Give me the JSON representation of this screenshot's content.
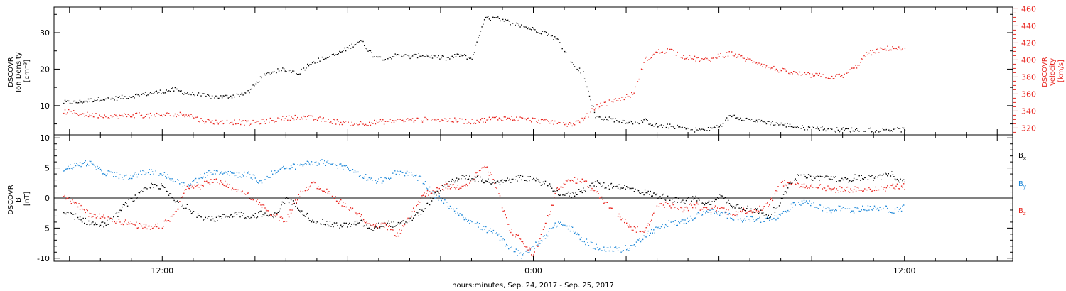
{
  "chart_data": [
    {
      "type": "scatter",
      "panel": "top",
      "ylabel": "DSCOVR Ion Density [cm⁻³]",
      "ylabel_lines": [
        "DSCOVR",
        "Ion Density",
        "[cm⁻³]"
      ],
      "ylim": [
        2,
        37
      ],
      "yticks": [
        10,
        20,
        30
      ],
      "y2label": "DSCOVR Velocity [km/s]",
      "y2label_lines": [
        "DSCOVR",
        "Velocity",
        "[km/s]"
      ],
      "y2lim": [
        312,
        462
      ],
      "y2ticks": [
        320,
        340,
        360,
        380,
        400,
        420,
        440,
        460
      ],
      "series": [
        {
          "name": "Ion Density",
          "color": "#000000",
          "axis": "left",
          "x": [
            8.8,
            9.2,
            9.6,
            10.0,
            10.4,
            10.8,
            11.2,
            11.6,
            12.0,
            12.4,
            12.8,
            13.2,
            13.6,
            14.0,
            14.4,
            14.8,
            15.2,
            15.6,
            16.0,
            16.4,
            16.8,
            17.2,
            17.6,
            18.0,
            18.4,
            18.8,
            19.2,
            19.6,
            20.0,
            20.4,
            20.8,
            21.2,
            21.6,
            22.0,
            22.4,
            22.8,
            23.2,
            23.6,
            24.0,
            24.4,
            24.8,
            25.2,
            25.6,
            26.0,
            26.4,
            26.8,
            27.2,
            27.6,
            28.0,
            28.4,
            28.8,
            29.2,
            29.6,
            30.0,
            30.4,
            30.8,
            31.2,
            31.6,
            32.0,
            32.4,
            32.8,
            33.2,
            33.6,
            34.0,
            34.4,
            34.8,
            35.2,
            35.6,
            36.0
          ],
          "y": [
            11,
            11,
            11.5,
            12,
            12,
            12.5,
            13,
            13.5,
            14,
            14.5,
            13.5,
            13,
            12.5,
            12.5,
            13,
            14,
            18,
            19.5,
            20,
            19,
            22,
            23,
            24,
            26,
            28,
            24,
            23,
            24,
            23.5,
            24,
            23.5,
            23,
            24,
            23,
            34,
            34,
            33,
            32,
            31,
            30,
            28,
            22,
            19,
            7,
            6.5,
            6,
            5.5,
            6,
            4.5,
            4.5,
            4,
            3.5,
            3.5,
            4.5,
            7.5,
            6.5,
            6,
            5.5,
            5,
            4.5,
            4,
            4,
            3.5,
            3.5,
            3.5,
            3.5,
            3.5,
            3.5,
            3.5
          ]
        },
        {
          "name": "Velocity",
          "color": "#e8251f",
          "axis": "right",
          "x": [
            8.8,
            9.2,
            9.6,
            10.0,
            10.4,
            10.8,
            11.2,
            11.6,
            12.0,
            12.4,
            12.8,
            13.2,
            13.6,
            14.0,
            14.4,
            14.8,
            15.2,
            15.6,
            16.0,
            16.4,
            16.8,
            17.2,
            17.6,
            18.0,
            18.4,
            18.8,
            19.2,
            19.6,
            20.0,
            20.4,
            20.8,
            21.2,
            21.6,
            22.0,
            22.4,
            22.8,
            23.2,
            23.6,
            24.0,
            24.4,
            24.8,
            25.2,
            25.6,
            26.0,
            26.4,
            26.8,
            27.2,
            27.6,
            28.0,
            28.4,
            28.8,
            29.2,
            29.6,
            30.0,
            30.4,
            30.8,
            31.2,
            31.6,
            32.0,
            32.4,
            32.8,
            33.2,
            33.6,
            34.0,
            34.4,
            34.8,
            35.2,
            35.6,
            36.0
          ],
          "y": [
            340,
            338,
            336,
            335,
            334,
            335,
            336,
            335,
            336,
            336,
            337,
            330,
            328,
            327,
            328,
            326,
            328,
            330,
            332,
            334,
            332,
            330,
            328,
            326,
            326,
            327,
            328,
            329,
            330,
            330,
            331,
            330,
            329,
            328,
            330,
            332,
            332,
            331,
            330,
            328,
            327,
            325,
            330,
            345,
            350,
            355,
            360,
            400,
            410,
            412,
            405,
            402,
            400,
            405,
            408,
            402,
            398,
            392,
            388,
            385,
            383,
            382,
            380,
            382,
            392,
            408,
            412,
            415,
            412
          ]
        }
      ]
    },
    {
      "type": "scatter",
      "panel": "bottom",
      "ylabel": "DSCOVR B [nT]",
      "ylabel_lines": [
        "DSCOVR",
        "B",
        "[nT]"
      ],
      "ylim": [
        -10.5,
        10.5
      ],
      "yticks": [
        -10,
        -5,
        0,
        5,
        10
      ],
      "zero_line": true,
      "series": [
        {
          "name": "Bx",
          "color": "#000000",
          "x": [
            8.8,
            9.2,
            9.6,
            10.0,
            10.4,
            10.8,
            11.2,
            11.6,
            12.0,
            12.4,
            12.8,
            13.2,
            13.6,
            14.0,
            14.4,
            14.8,
            15.2,
            15.6,
            16.0,
            16.4,
            16.8,
            17.2,
            17.6,
            18.0,
            18.4,
            18.8,
            19.2,
            19.6,
            20.0,
            20.4,
            20.8,
            21.2,
            21.6,
            22.0,
            22.4,
            22.8,
            23.2,
            23.6,
            24.0,
            24.4,
            24.8,
            25.2,
            25.6,
            26.0,
            26.4,
            26.8,
            27.2,
            27.6,
            28.0,
            28.4,
            28.8,
            29.2,
            29.6,
            30.0,
            30.4,
            30.8,
            31.2,
            31.6,
            32.0,
            32.4,
            32.8,
            33.2,
            33.6,
            34.0,
            34.4,
            34.8,
            35.2,
            35.6,
            36.0
          ],
          "y": [
            -2.5,
            -3,
            -4,
            -4.5,
            -3.5,
            -1,
            0.5,
            2,
            2,
            -0.5,
            -1.5,
            -3,
            -3.5,
            -3,
            -2.5,
            -3,
            -2.5,
            -3,
            0,
            -1.5,
            -3.5,
            -4,
            -4.5,
            -4.5,
            -4,
            -5,
            -4,
            -4.5,
            -3.5,
            -2,
            0.5,
            2.5,
            3.5,
            3.5,
            3,
            2.5,
            3,
            3.5,
            3,
            2.5,
            1,
            0.5,
            1.5,
            2.5,
            2,
            2,
            1.5,
            1,
            0.5,
            0,
            -0.5,
            0,
            -1,
            0.5,
            -1,
            -1.5,
            -2,
            -3,
            -0.5,
            3.5,
            3.5,
            3.5,
            3.5,
            3,
            3.5,
            3.5,
            3.5,
            4,
            2.5
          ]
        },
        {
          "name": "By",
          "color": "#1c87d8",
          "x": [
            8.8,
            9.2,
            9.6,
            10.0,
            10.4,
            10.8,
            11.2,
            11.6,
            12.0,
            12.4,
            12.8,
            13.2,
            13.6,
            14.0,
            14.4,
            14.8,
            15.2,
            15.6,
            16.0,
            16.4,
            16.8,
            17.2,
            17.6,
            18.0,
            18.4,
            18.8,
            19.2,
            19.6,
            20.0,
            20.4,
            20.8,
            21.2,
            21.6,
            22.0,
            22.4,
            22.8,
            23.2,
            23.6,
            24.0,
            24.4,
            24.8,
            25.2,
            25.6,
            26.0,
            26.4,
            26.8,
            27.2,
            27.6,
            28.0,
            28.4,
            28.8,
            29.2,
            29.6,
            30.0,
            30.4,
            30.8,
            31.2,
            31.6,
            32.0,
            32.4,
            32.8,
            33.2,
            33.6,
            34.0,
            34.4,
            34.8,
            35.2,
            35.6,
            36.0
          ],
          "y": [
            5,
            5.5,
            6,
            4.5,
            4,
            3.5,
            4,
            4.5,
            4,
            3,
            2,
            3.5,
            4.5,
            4.5,
            4,
            4,
            2.5,
            4.5,
            5,
            5.5,
            6,
            6,
            5.5,
            5,
            4,
            3,
            3,
            4.5,
            4,
            3,
            0.5,
            -1,
            -2.5,
            -4,
            -5,
            -6,
            -8,
            -9.5,
            -8,
            -6,
            -4,
            -5,
            -7,
            -8,
            -8.5,
            -8.5,
            -8,
            -6,
            -5,
            -4,
            -4,
            -3,
            -2,
            -2.5,
            -3,
            -3.5,
            -3.5,
            -3.5,
            -3,
            -1,
            -0.5,
            -1.5,
            -2,
            -1.5,
            -2,
            -1.5,
            -1.5,
            -2,
            -1.5
          ]
        },
        {
          "name": "Bz",
          "color": "#e8251f",
          "x": [
            8.8,
            9.2,
            9.6,
            10.0,
            10.4,
            10.8,
            11.2,
            11.6,
            12.0,
            12.4,
            12.8,
            13.2,
            13.6,
            14.0,
            14.4,
            14.8,
            15.2,
            15.6,
            16.0,
            16.4,
            16.8,
            17.2,
            17.6,
            18.0,
            18.4,
            18.8,
            19.2,
            19.6,
            20.0,
            20.4,
            20.8,
            21.2,
            21.6,
            22.0,
            22.4,
            22.8,
            23.2,
            23.6,
            24.0,
            24.4,
            24.8,
            25.2,
            25.6,
            26.0,
            26.4,
            26.8,
            27.2,
            27.6,
            28.0,
            28.4,
            28.8,
            29.2,
            29.6,
            30.0,
            30.4,
            30.8,
            31.2,
            31.6,
            32.0,
            32.4,
            32.8,
            33.2,
            33.6,
            34.0,
            34.4,
            34.8,
            35.2,
            35.6,
            36.0
          ],
          "y": [
            0.5,
            -1,
            -2.5,
            -3,
            -3.5,
            -4,
            -4.5,
            -5,
            -4.5,
            -2.5,
            2,
            2,
            3,
            2.5,
            1,
            0.5,
            -1,
            -3,
            -3.5,
            0.5,
            2.5,
            1.5,
            0,
            -1.5,
            -3,
            -4.5,
            -4.5,
            -6,
            -3,
            0.5,
            1.5,
            2,
            2,
            3,
            5.5,
            2,
            -5,
            -7,
            -9.5,
            -4,
            2,
            3,
            3,
            1,
            -1,
            -3,
            -5,
            -5.5,
            -1,
            -1,
            -2,
            -1,
            -2,
            -1.5,
            -2.5,
            -2,
            -2,
            -1,
            2.5,
            2.5,
            2,
            2,
            1.5,
            1.5,
            1.5,
            1.5,
            1.5,
            2,
            2
          ]
        }
      ],
      "legend": [
        {
          "label": "Bx",
          "base": "B",
          "sub": "x",
          "color": "#000000"
        },
        {
          "label": "By",
          "base": "B",
          "sub": "y",
          "color": "#1c87d8"
        },
        {
          "label": "Bz",
          "base": "B",
          "sub": "z",
          "color": "#e8251f"
        }
      ]
    }
  ],
  "xaxis": {
    "label": "hours:minutes, Sep. 24, 2017 - Sep. 25, 2017",
    "xlim_hours": [
      8.5,
      39.5
    ],
    "ticks": [
      {
        "hours": 12,
        "label": "12:00"
      },
      {
        "hours": 24,
        "label": "0:00"
      },
      {
        "hours": 36,
        "label": "12:00"
      }
    ]
  },
  "colors": {
    "black": "#000000",
    "red": "#e8251f",
    "blue": "#1c87d8"
  }
}
